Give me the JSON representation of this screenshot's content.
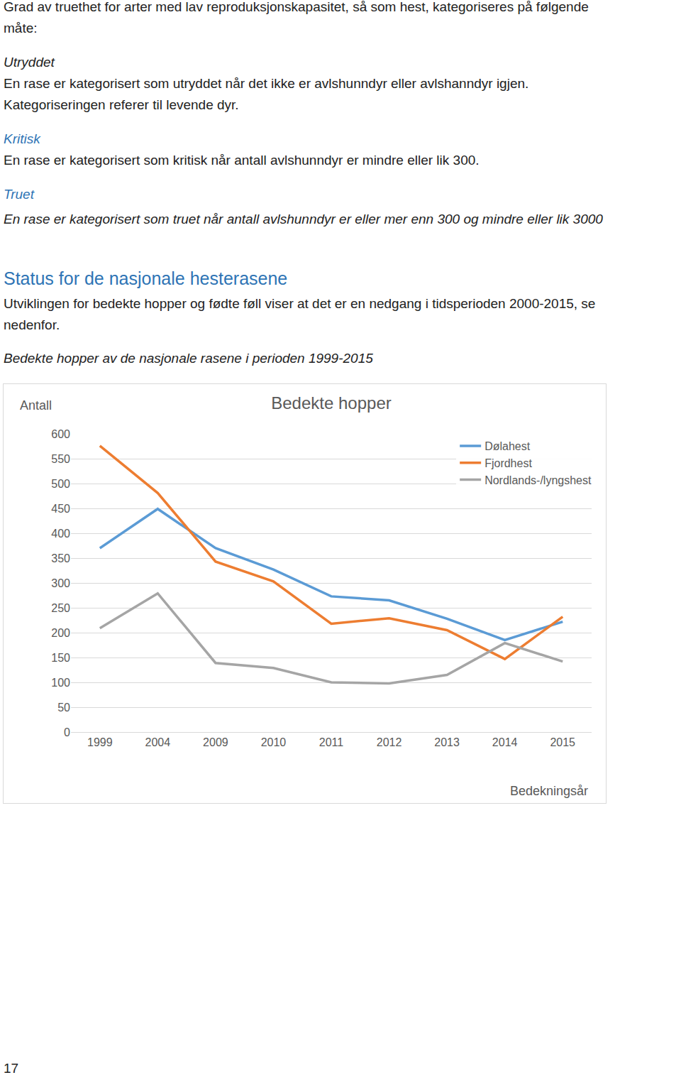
{
  "document": {
    "intro": [
      "Grad av truethet for arter med lav reproduksjonskapasitet, så som hest, kategoriseres på følgende",
      "måte:"
    ],
    "categories": [
      {
        "title": "Utryddet",
        "lines": [
          "En rase er kategorisert som utryddet når det ikke er avlshunndyr eller avlshanndyr igjen.",
          "Kategoriseringen referer til levende dyr."
        ]
      },
      {
        "title": "Kritisk",
        "lines": [
          "En rase er kategorisert som kritisk når antall avlshunndyr er mindre eller lik 300."
        ]
      },
      {
        "title": "Truet",
        "lines": [
          "En rase er kategorisert som truet når antall avlshunndyr er eller mer enn 300 og mindre eller lik 3000"
        ]
      }
    ],
    "section": {
      "heading": "Status for de nasjonale hesterasene",
      "lines": [
        "Utviklingen for bedekte hopper og fødte føll viser at det er en nedgang i tidsperioden 2000-2015, se",
        "nedenfor."
      ],
      "caption": "Bedekte hopper av de nasjonale rasene i perioden 1999-2015"
    },
    "page_number": 17
  },
  "chart_data": {
    "type": "line",
    "title": "Bedekte hopper",
    "y_label": "Antall",
    "x_label": "Bedekningsår",
    "categories": [
      "1999",
      "2004",
      "2009",
      "2010",
      "2011",
      "2012",
      "2013",
      "2014",
      "2015"
    ],
    "series": [
      {
        "name": "Dølahest",
        "color": "#5b9bd5",
        "values": [
          370,
          449,
          370,
          327,
          273,
          265,
          228,
          185,
          222
        ]
      },
      {
        "name": "Fjordhest",
        "color": "#ed7d31",
        "values": [
          576,
          481,
          343,
          303,
          218,
          229,
          205,
          147,
          232
        ]
      },
      {
        "name": "Nordlands-/lyngshest",
        "color": "#a5a5a5",
        "values": [
          209,
          279,
          139,
          129,
          100,
          98,
          115,
          179,
          142
        ]
      }
    ],
    "ylim": [
      0,
      600
    ],
    "yticks": [
      0,
      50,
      100,
      150,
      200,
      250,
      300,
      350,
      400,
      450,
      500,
      550,
      600
    ],
    "grid": true,
    "legend": "top-right"
  }
}
